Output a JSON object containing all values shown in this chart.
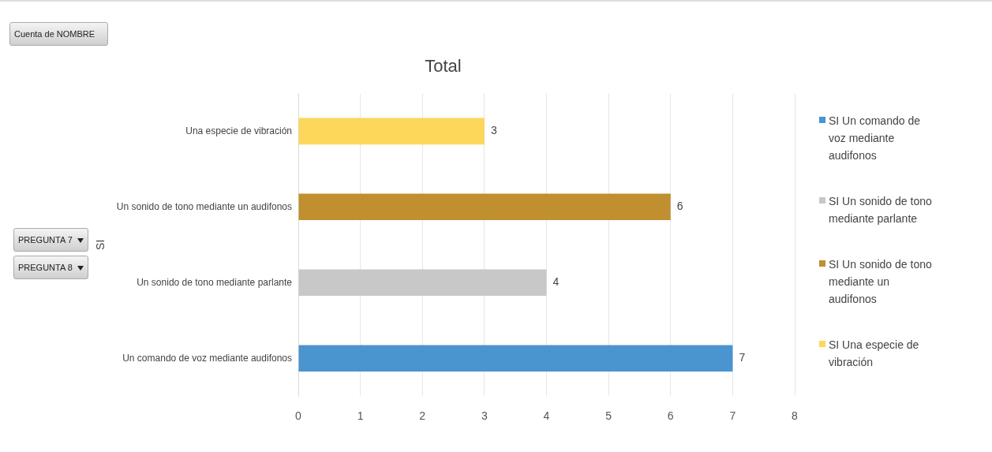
{
  "chart_data": {
    "type": "bar",
    "orientation": "horizontal",
    "title": "Total",
    "ylabel": "SI",
    "categories": [
      "Una especie de vibración",
      "Un sonido de tono mediante un audifonos",
      "Un sonido de tono mediante parlante",
      "Un comando de voz mediante audifonos"
    ],
    "series": [
      {
        "name": "SI Un comando de voz mediante audifonos",
        "color": "#4a94d0",
        "values": [
          null,
          null,
          null,
          7
        ]
      },
      {
        "name": "SI Un sonido de tono mediante parlante",
        "color": "#c8c8c8",
        "values": [
          null,
          null,
          4,
          null
        ]
      },
      {
        "name": "SI Un sonido de tono mediante un audifonos",
        "color": "#bf8f30",
        "values": [
          null,
          6,
          null,
          null
        ]
      },
      {
        "name": "SI Una especie de vibración",
        "color": "#fdd65c",
        "values": [
          3,
          null,
          null,
          null
        ]
      }
    ],
    "xlim": [
      0,
      8
    ],
    "xticks": [
      0,
      1,
      2,
      3,
      4,
      5,
      6,
      7,
      8
    ],
    "grid": "x",
    "legend": "right",
    "data_labels": true,
    "annotations": [
      "Cuenta de NOMBRE",
      "PREGUNTA 7",
      "PREGUNTA 8"
    ]
  }
}
